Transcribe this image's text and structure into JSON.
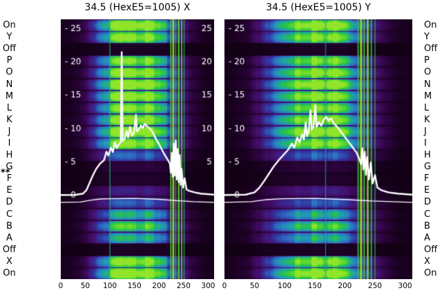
{
  "chart_data": {
    "type": "heatmap",
    "x_range": [
      0,
      312
    ],
    "y_range": [
      -12.5,
      26.4
    ],
    "line_color": "#ffffff",
    "background": "#ffffff",
    "star_marker": "**",
    "starred_row": "F",
    "row_labels": [
      "On",
      "Y",
      "Off",
      "P",
      "O",
      "N",
      "M",
      "L",
      "K",
      "J",
      "I",
      "H",
      "G",
      "F",
      "E",
      "D",
      "C",
      "B",
      "A",
      "Off",
      "X",
      "On"
    ],
    "row_factors": [
      1.0,
      0.92,
      0.05,
      0.88,
      0.95,
      1.0,
      0.96,
      0.9,
      0.95,
      1.0,
      0.92,
      0.5,
      0.12,
      0.08,
      0.32,
      0.48,
      0.68,
      0.8,
      0.68,
      0.05,
      0.92,
      1.0
    ],
    "intensity_profile": [
      [
        0,
        0.03
      ],
      [
        18,
        0.05
      ],
      [
        35,
        0.1
      ],
      [
        50,
        0.22
      ],
      [
        65,
        0.4
      ],
      [
        80,
        0.6
      ],
      [
        95,
        0.78
      ],
      [
        110,
        0.9
      ],
      [
        130,
        0.98
      ],
      [
        150,
        1.0
      ],
      [
        175,
        1.0
      ],
      [
        195,
        0.88
      ],
      [
        210,
        0.7
      ],
      [
        225,
        0.52
      ],
      [
        240,
        0.38
      ],
      [
        255,
        0.25
      ],
      [
        268,
        0.15
      ],
      [
        282,
        0.08
      ],
      [
        295,
        0.04
      ],
      [
        312,
        0.02
      ]
    ],
    "colormap": [
      {
        "t": 0.0,
        "c": "#120014"
      },
      {
        "t": 0.14,
        "c": "#2c043e"
      },
      {
        "t": 0.3,
        "c": "#45106e"
      },
      {
        "t": 0.45,
        "c": "#31339e"
      },
      {
        "t": 0.58,
        "c": "#2e6ec3"
      },
      {
        "t": 0.7,
        "c": "#1f9fb0"
      },
      {
        "t": 0.82,
        "c": "#27c14c"
      },
      {
        "t": 0.93,
        "c": "#5bd92e"
      },
      {
        "t": 1.0,
        "c": "#90e42a"
      }
    ],
    "panels": [
      {
        "title": "34.5 (HexE5=1005) X",
        "x_ticks": [
          0,
          50,
          100,
          150,
          200,
          250,
          300
        ],
        "y_ticks_left": [
          {
            "label": "- 25",
            "v": 25
          },
          {
            "label": "- 20",
            "v": 20
          },
          {
            "label": "- 15",
            "v": 15
          },
          {
            "label": "- 10",
            "v": 10
          },
          {
            "label": "- 5",
            "v": 5
          },
          {
            "label": "- 0",
            "v": 0
          }
        ],
        "y_ticks_right": [
          {
            "label": "25",
            "v": 25
          },
          {
            "label": "20",
            "v": 20
          },
          {
            "label": "15",
            "v": 15
          },
          {
            "label": "10",
            "v": 10
          },
          {
            "label": "5",
            "v": 5
          }
        ],
        "stripes": [
          {
            "x": 100,
            "i": 0.5,
            "w": 1.5
          },
          {
            "x": 224,
            "i": 0.75,
            "w": 2
          },
          {
            "x": 229,
            "i": 1.0,
            "w": 2.5
          },
          {
            "x": 234,
            "i": 0.65,
            "w": 1.5
          },
          {
            "x": 240,
            "i": 0.9,
            "w": 2
          },
          {
            "x": 246,
            "i": 0.8,
            "w": 2
          },
          {
            "x": 251,
            "i": 0.55,
            "w": 1.5
          }
        ],
        "profile": [
          [
            0,
            0.1
          ],
          [
            30,
            0.12
          ],
          [
            45,
            0.3
          ],
          [
            52,
            0.8
          ],
          [
            58,
            1.8
          ],
          [
            65,
            3.0
          ],
          [
            72,
            4.0
          ],
          [
            80,
            4.8
          ],
          [
            88,
            5.3
          ],
          [
            93,
            6.6
          ],
          [
            97,
            6.0
          ],
          [
            102,
            7.2
          ],
          [
            106,
            6.5
          ],
          [
            110,
            8.0
          ],
          [
            114,
            7.1
          ],
          [
            118,
            7.7
          ],
          [
            122,
            8.0
          ],
          [
            124,
            21.5
          ],
          [
            126,
            8.2
          ],
          [
            130,
            8.5
          ],
          [
            134,
            9.7
          ],
          [
            137,
            8.7
          ],
          [
            141,
            10.3
          ],
          [
            145,
            9.0
          ],
          [
            149,
            9.4
          ],
          [
            153,
            12.1
          ],
          [
            155,
            9.6
          ],
          [
            159,
            9.9
          ],
          [
            163,
            10.5
          ],
          [
            167,
            10.1
          ],
          [
            171,
            10.8
          ],
          [
            175,
            10.4
          ],
          [
            179,
            10.2
          ],
          [
            183,
            9.9
          ],
          [
            187,
            9.5
          ],
          [
            191,
            8.9
          ],
          [
            195,
            8.3
          ],
          [
            200,
            7.7
          ],
          [
            205,
            7.0
          ],
          [
            210,
            6.3
          ],
          [
            215,
            5.7
          ],
          [
            219,
            5.2
          ],
          [
            222,
            4.8
          ],
          [
            224,
            3.4
          ],
          [
            226,
            6.4
          ],
          [
            228,
            2.8
          ],
          [
            230,
            7.8
          ],
          [
            232,
            3.0
          ],
          [
            234,
            8.3
          ],
          [
            236,
            2.4
          ],
          [
            238,
            7.0
          ],
          [
            240,
            2.0
          ],
          [
            242,
            6.1
          ],
          [
            244,
            1.6
          ],
          [
            246,
            4.0
          ],
          [
            249,
            1.2
          ],
          [
            252,
            2.6
          ],
          [
            256,
            0.9
          ],
          [
            262,
            0.7
          ],
          [
            272,
            0.5
          ],
          [
            285,
            0.3
          ],
          [
            312,
            0.15
          ]
        ],
        "baseline": [
          [
            0,
            -1.0
          ],
          [
            40,
            -0.95
          ],
          [
            60,
            -0.7
          ],
          [
            80,
            -0.5
          ],
          [
            100,
            -0.45
          ],
          [
            150,
            -0.4
          ],
          [
            200,
            -0.55
          ],
          [
            235,
            -0.75
          ],
          [
            270,
            -0.9
          ],
          [
            312,
            -1.0
          ]
        ]
      },
      {
        "title": "34.5 (HexE5=1005) Y",
        "x_ticks": [
          0,
          50,
          100,
          150,
          200,
          250,
          300
        ],
        "y_ticks_left": [
          {
            "label": "- 25",
            "v": 25
          },
          {
            "label": "- 20",
            "v": 20
          },
          {
            "label": "- 15",
            "v": 15
          },
          {
            "label": "- 10",
            "v": 10
          },
          {
            "label": "- 5",
            "v": 5
          },
          {
            "label": "- 0",
            "v": 0
          }
        ],
        "y_ticks_right": [],
        "stripes": [
          {
            "x": 168,
            "i": 0.35,
            "w": 1.5
          },
          {
            "x": 222,
            "i": 0.7,
            "w": 2
          },
          {
            "x": 227,
            "i": 1.0,
            "w": 3
          },
          {
            "x": 232,
            "i": 0.8,
            "w": 2
          },
          {
            "x": 238,
            "i": 0.95,
            "w": 2.5
          },
          {
            "x": 244,
            "i": 0.7,
            "w": 2
          },
          {
            "x": 250,
            "i": 0.55,
            "w": 1.5
          }
        ],
        "profile": [
          [
            0,
            0.1
          ],
          [
            35,
            0.15
          ],
          [
            50,
            0.5
          ],
          [
            58,
            1.2
          ],
          [
            66,
            2.2
          ],
          [
            74,
            3.3
          ],
          [
            82,
            4.4
          ],
          [
            90,
            5.3
          ],
          [
            98,
            6.1
          ],
          [
            106,
            6.9
          ],
          [
            112,
            7.8
          ],
          [
            116,
            7.2
          ],
          [
            121,
            8.7
          ],
          [
            125,
            8.0
          ],
          [
            129,
            9.2
          ],
          [
            132,
            8.4
          ],
          [
            135,
            11.0
          ],
          [
            137,
            8.9
          ],
          [
            140,
            9.7
          ],
          [
            143,
            12.8
          ],
          [
            145,
            9.9
          ],
          [
            148,
            10.4
          ],
          [
            151,
            13.5
          ],
          [
            153,
            10.3
          ],
          [
            157,
            11.0
          ],
          [
            161,
            10.5
          ],
          [
            165,
            11.4
          ],
          [
            169,
            11.8
          ],
          [
            173,
            11.2
          ],
          [
            177,
            11.6
          ],
          [
            181,
            10.9
          ],
          [
            185,
            10.5
          ],
          [
            189,
            10.1
          ],
          [
            194,
            9.5
          ],
          [
            199,
            8.9
          ],
          [
            204,
            8.3
          ],
          [
            209,
            7.7
          ],
          [
            214,
            7.1
          ],
          [
            219,
            6.5
          ],
          [
            223,
            5.7
          ],
          [
            227,
            4.7
          ],
          [
            229,
            7.1
          ],
          [
            231,
            3.9
          ],
          [
            233,
            6.6
          ],
          [
            235,
            3.1
          ],
          [
            237,
            5.8
          ],
          [
            240,
            2.4
          ],
          [
            243,
            5.0
          ],
          [
            246,
            1.8
          ],
          [
            250,
            3.1
          ],
          [
            254,
            1.2
          ],
          [
            261,
            0.8
          ],
          [
            272,
            0.5
          ],
          [
            288,
            0.3
          ],
          [
            312,
            0.15
          ]
        ],
        "baseline": [
          [
            0,
            -1.0
          ],
          [
            45,
            -0.9
          ],
          [
            70,
            -0.6
          ],
          [
            95,
            -0.45
          ],
          [
            150,
            -0.4
          ],
          [
            205,
            -0.6
          ],
          [
            245,
            -0.8
          ],
          [
            312,
            -1.0
          ]
        ]
      }
    ]
  }
}
